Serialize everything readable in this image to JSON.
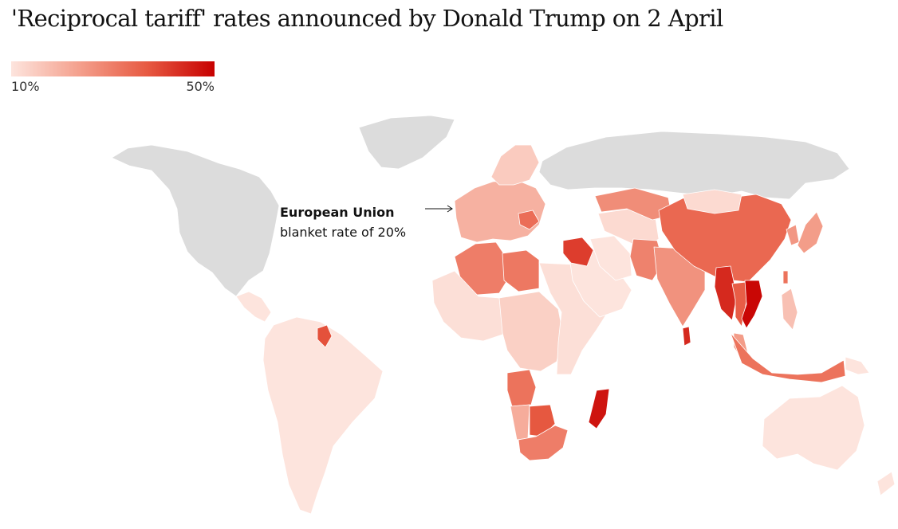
{
  "title": "'Reciprocal tariff' rates announced by Donald Trump on 2 April",
  "legend": {
    "min_label": "10%",
    "max_label": "50%",
    "min_value": 10,
    "max_value": 50,
    "scale_colors": [
      "#fde4dd",
      "#f4a08d",
      "#e75a42",
      "#c70000"
    ],
    "no_data_color": "#dcdcdc"
  },
  "annotation": {
    "title": "European Union",
    "subtitle": "blanket rate of 20%"
  },
  "regions": [
    {
      "name": "North America",
      "rate": null
    },
    {
      "name": "Greenland",
      "rate": null
    },
    {
      "name": "Russia",
      "rate": null
    },
    {
      "name": "Central America",
      "rate": 10
    },
    {
      "name": "South America",
      "rate": 10
    },
    {
      "name": "Guyana",
      "rate": 38
    },
    {
      "name": "Europe (EU)",
      "rate": 20
    },
    {
      "name": "Scandinavia",
      "rate": 15
    },
    {
      "name": "Balkans",
      "rate": 33
    },
    {
      "name": "North Africa",
      "rate": 30
    },
    {
      "name": "Libya",
      "rate": 31
    },
    {
      "name": "West Africa",
      "rate": 11
    },
    {
      "name": "Central Africa",
      "rate": 14
    },
    {
      "name": "East Africa",
      "rate": 11
    },
    {
      "name": "Angola",
      "rate": 32
    },
    {
      "name": "Namibia",
      "rate": 21
    },
    {
      "name": "Botswana",
      "rate": 37
    },
    {
      "name": "Southern Africa",
      "rate": 30
    },
    {
      "name": "Madagascar",
      "rate": 47
    },
    {
      "name": "Arabian Peninsula",
      "rate": 10
    },
    {
      "name": "Iraq / Syria",
      "rate": 41
    },
    {
      "name": "Iran",
      "rate": 10
    },
    {
      "name": "Central Asia",
      "rate": 12
    },
    {
      "name": "Kazakhstan",
      "rate": 27
    },
    {
      "name": "Pakistan",
      "rate": 29
    },
    {
      "name": "India",
      "rate": 26
    },
    {
      "name": "Sri Lanka",
      "rate": 44
    },
    {
      "name": "China",
      "rate": 34
    },
    {
      "name": "Mongolia",
      "rate": 12
    },
    {
      "name": "Korea",
      "rate": 25
    },
    {
      "name": "Japan",
      "rate": 24
    },
    {
      "name": "Taiwan",
      "rate": 32
    },
    {
      "name": "Myanmar",
      "rate": 44
    },
    {
      "name": "Thailand",
      "rate": 36
    },
    {
      "name": "Cambodia / Vietnam",
      "rate": 49
    },
    {
      "name": "Philippines",
      "rate": 17
    },
    {
      "name": "Malaysia",
      "rate": 24
    },
    {
      "name": "Indonesia",
      "rate": 32
    },
    {
      "name": "Papua New Guinea",
      "rate": 10
    },
    {
      "name": "Australia",
      "rate": 10
    },
    {
      "name": "New Zealand",
      "rate": 10
    }
  ]
}
